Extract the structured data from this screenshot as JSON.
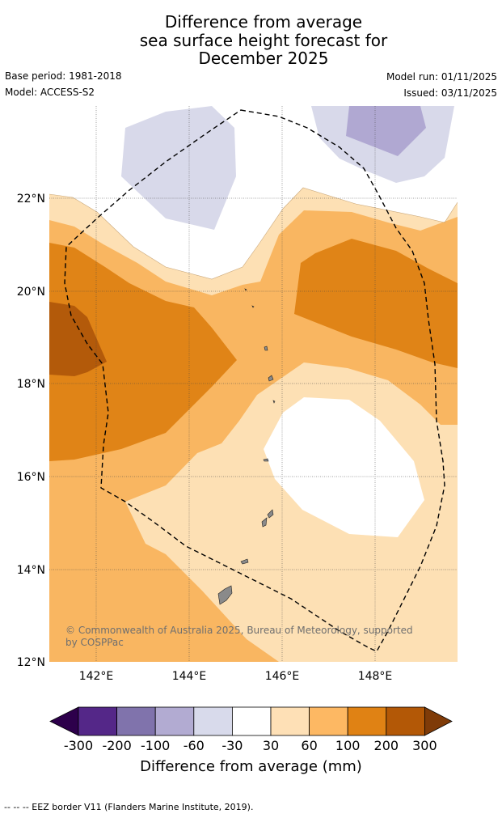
{
  "title": {
    "line1": "Difference from average",
    "line2": "sea surface height forecast for",
    "line3": "December 2025"
  },
  "meta": {
    "base_period": "Base period: 1981-2018",
    "model": "Model: ACCESS-S2",
    "model_run": "Model run: 01/11/2025",
    "issued": "Issued: 03/11/2025"
  },
  "map": {
    "latitude_labels": [
      "22°N",
      "20°N",
      "18°N",
      "16°N",
      "14°N",
      "12°N"
    ],
    "longitude_labels": [
      "142°E",
      "144°E",
      "146°E",
      "148°E"
    ],
    "copyright": "© Commonwealth of Australia 2025, Bureau of Meteorology, supported by COSPPac",
    "colors": {
      "ocean_neutral": "#ffffff",
      "low_30_60": "#fde0b4",
      "mid_60_100": "#f9b661",
      "high_100_200": "#e08417",
      "vhigh_200_300": "#b35a0a",
      "neg_30_60": "#d8d9ea",
      "neg_60_100": "#b0a8d2",
      "land": "#8a8a8a",
      "eez": "#000000"
    }
  },
  "colorbar": {
    "tick_labels": [
      "-300",
      "-200",
      "-100",
      "-60",
      "-30",
      "30",
      "60",
      "100",
      "200",
      "300"
    ],
    "colors": [
      "#2d004b",
      "#542788",
      "#8073ac",
      "#b2abd2",
      "#d8daeb",
      "#ffffff",
      "#fee0b6",
      "#fdb863",
      "#e08214",
      "#b35806",
      "#7f3b08"
    ],
    "label": "Difference from average (mm)"
  },
  "footer": "--  --  -- EEZ border V11 (Flanders Marine Institute, 2019)."
}
